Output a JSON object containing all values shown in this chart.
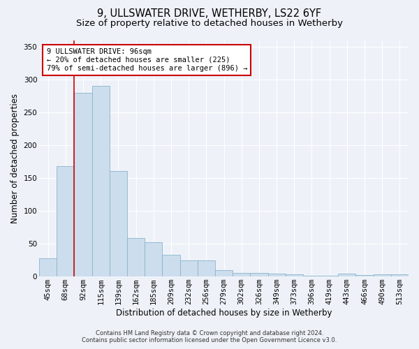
{
  "title": "9, ULLSWATER DRIVE, WETHERBY, LS22 6YF",
  "subtitle": "Size of property relative to detached houses in Wetherby",
  "xlabel": "Distribution of detached houses by size in Wetherby",
  "ylabel": "Number of detached properties",
  "footer_line1": "Contains HM Land Registry data © Crown copyright and database right 2024.",
  "footer_line2": "Contains public sector information licensed under the Open Government Licence v3.0.",
  "bar_labels": [
    "45sqm",
    "68sqm",
    "92sqm",
    "115sqm",
    "139sqm",
    "162sqm",
    "185sqm",
    "209sqm",
    "232sqm",
    "256sqm",
    "279sqm",
    "302sqm",
    "326sqm",
    "349sqm",
    "373sqm",
    "396sqm",
    "419sqm",
    "443sqm",
    "466sqm",
    "490sqm",
    "513sqm"
  ],
  "bar_values": [
    28,
    168,
    280,
    290,
    161,
    59,
    52,
    33,
    25,
    25,
    10,
    6,
    5,
    4,
    3,
    1,
    1,
    4,
    2,
    3,
    3
  ],
  "bar_color": "#ccdded",
  "bar_edge_color": "#8ab4cc",
  "vline_x": 1.5,
  "vline_color": "#cc0000",
  "annotation_text": "9 ULLSWATER DRIVE: 96sqm\n← 20% of detached houses are smaller (225)\n79% of semi-detached houses are larger (896) →",
  "annotation_box_color": "#ffffff",
  "annotation_box_edge": "#cc0000",
  "ylim": [
    0,
    360
  ],
  "yticks": [
    0,
    50,
    100,
    150,
    200,
    250,
    300,
    350
  ],
  "background_color": "#eef2f8",
  "plot_bg_color": "#eef2f8",
  "title_fontsize": 10.5,
  "subtitle_fontsize": 9.5,
  "axis_label_fontsize": 8.5,
  "tick_fontsize": 7.5
}
